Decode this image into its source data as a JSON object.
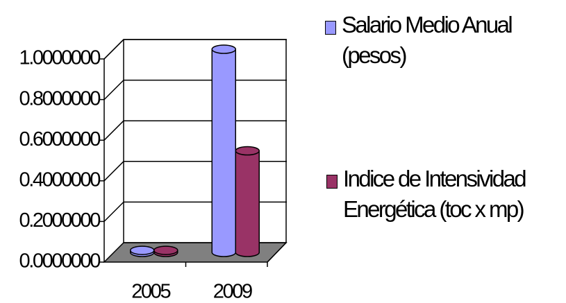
{
  "chart_data": {
    "type": "bar3d",
    "categories": [
      "2005",
      "2009"
    ],
    "series": [
      {
        "name": "Salario Medio Anual (pesos)",
        "color": "#9999ff",
        "values": [
          0.01,
          1.0
        ]
      },
      {
        "name": "Indice de Intensividad Energética (toc x mp)",
        "color": "#993366",
        "values": [
          0.01,
          0.5
        ]
      }
    ],
    "ylim": [
      0,
      1.0
    ],
    "yticks": [
      {
        "value": 0,
        "label": "0.0000000"
      },
      {
        "value": 0.2,
        "label": "0.2000000"
      },
      {
        "value": 0.4,
        "label": "0.4000000"
      },
      {
        "value": 0.6,
        "label": "0.6000000"
      },
      {
        "value": 0.8,
        "label": "0.8000000"
      },
      {
        "value": 1.0,
        "label": "1.0000000"
      }
    ],
    "grid": true,
    "legend": "right"
  }
}
